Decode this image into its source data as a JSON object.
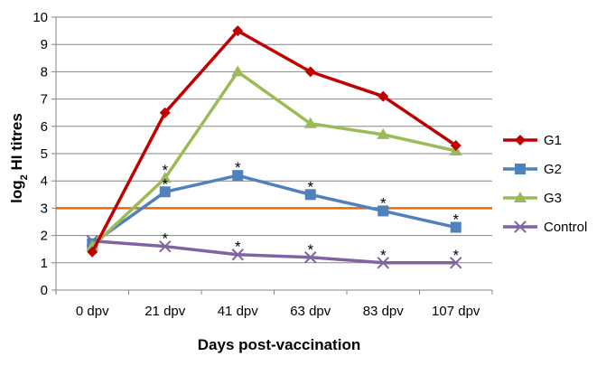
{
  "chart_data": {
    "type": "line",
    "title": "",
    "xlabel": "Days post-vaccination",
    "ylabel_main": "log",
    "ylabel_sub": "2",
    "ylabel_rest": " HI titres",
    "categories": [
      "0 dpv",
      "21 dpv",
      "41 dpv",
      "63 dpv",
      "83 dpv",
      "107 dpv"
    ],
    "ylim": [
      0,
      10
    ],
    "yticks": [
      "0",
      "1",
      "2",
      "3",
      "4",
      "5",
      "6",
      "7",
      "8",
      "9",
      "10"
    ],
    "grid": "horizontal",
    "legend_position": "right",
    "significance_marker": "*",
    "reference_line": {
      "y": 3,
      "color": "#E36C09"
    },
    "series": [
      {
        "name": "G1",
        "color": "#C00000",
        "marker": "diamond",
        "values": [
          1.4,
          6.5,
          9.5,
          8.0,
          7.1,
          5.3
        ],
        "stars": [
          false,
          false,
          false,
          false,
          false,
          false
        ]
      },
      {
        "name": "G2",
        "color": "#4F81BD",
        "marker": "square",
        "values": [
          1.7,
          3.6,
          4.2,
          3.5,
          2.9,
          2.3
        ],
        "stars": [
          false,
          true,
          true,
          true,
          true,
          true
        ]
      },
      {
        "name": "G3",
        "color": "#9BBB59",
        "marker": "triangle",
        "values": [
          1.6,
          4.1,
          8.0,
          6.1,
          5.7,
          5.1
        ],
        "stars": [
          false,
          true,
          false,
          false,
          false,
          false
        ]
      },
      {
        "name": "Control",
        "color": "#8064A2",
        "marker": "x",
        "values": [
          1.8,
          1.6,
          1.3,
          1.2,
          1.0,
          1.0
        ],
        "stars": [
          false,
          true,
          true,
          true,
          true,
          true
        ]
      }
    ]
  }
}
